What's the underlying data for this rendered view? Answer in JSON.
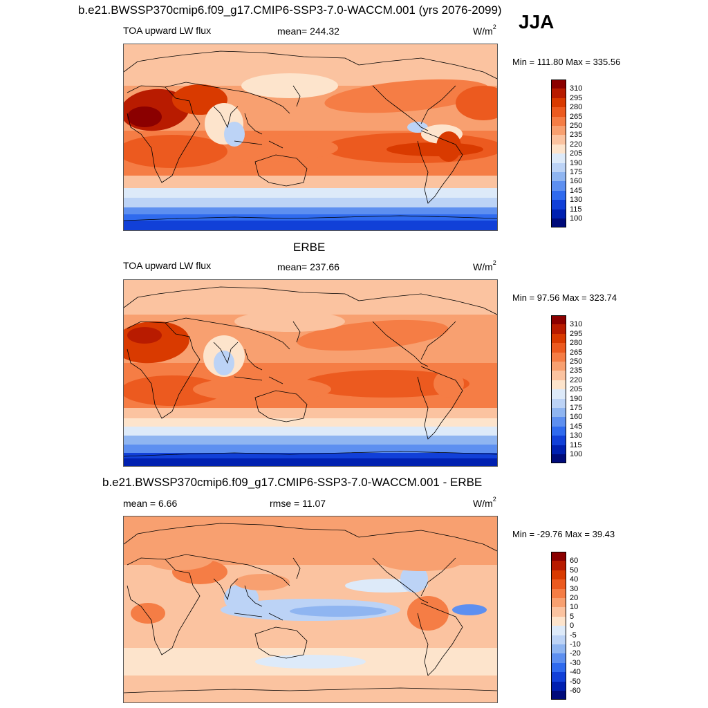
{
  "header": {
    "title": "b.e21.BWSSP370cmip6.f09_g17.CMIP6-SSP3-7.0-WACCM.001 (yrs 2076-2099)",
    "season": "JJA"
  },
  "panels": [
    {
      "id": "model",
      "heading": "",
      "left_label": "TOA upward LW flux",
      "center_label": "mean= 244.32",
      "units": "W/m",
      "units_sup": "2",
      "minmax": "Min = 111.80 Max = 335.56",
      "legend_levels": [
        "310",
        "295",
        "280",
        "265",
        "250",
        "235",
        "220",
        "205",
        "190",
        "175",
        "160",
        "145",
        "130",
        "115",
        "100"
      ],
      "legend_colors": [
        "#8b0000",
        "#b81b00",
        "#d93a00",
        "#ec5a1f",
        "#f57d45",
        "#f8a070",
        "#fbc3a0",
        "#fde4cc",
        "#ddeaf9",
        "#bcd3f6",
        "#8fb5f1",
        "#5d8ff0",
        "#2f6aee",
        "#1140d8",
        "#0020b0",
        "#000b7a"
      ],
      "pattern": "model"
    },
    {
      "id": "obs",
      "heading": "ERBE",
      "left_label": "TOA upward LW flux",
      "center_label": "mean= 237.66",
      "units": "W/m",
      "units_sup": "2",
      "minmax": "Min =  97.56 Max = 323.74",
      "legend_levels": [
        "310",
        "295",
        "280",
        "265",
        "250",
        "235",
        "220",
        "205",
        "190",
        "175",
        "160",
        "145",
        "130",
        "115",
        "100"
      ],
      "legend_colors": [
        "#8b0000",
        "#b81b00",
        "#d93a00",
        "#ec5a1f",
        "#f57d45",
        "#f8a070",
        "#fbc3a0",
        "#fde4cc",
        "#ddeaf9",
        "#bcd3f6",
        "#8fb5f1",
        "#5d8ff0",
        "#2f6aee",
        "#1140d8",
        "#0020b0",
        "#000b7a"
      ],
      "pattern": "obs"
    },
    {
      "id": "diff",
      "heading": "b.e21.BWSSP370cmip6.f09_g17.CMIP6-SSP3-7.0-WACCM.001 - ERBE",
      "left_label": "mean =   6.66",
      "center_label": "rmse =  11.07",
      "units": "W/m",
      "units_sup": "2",
      "minmax": "Min = -29.76 Max =  39.43",
      "legend_levels": [
        "60",
        "50",
        "40",
        "30",
        "20",
        "10",
        "5",
        "0",
        "-5",
        "-10",
        "-20",
        "-30",
        "-40",
        "-50",
        "-60"
      ],
      "legend_colors": [
        "#8b0000",
        "#b81b00",
        "#d93a00",
        "#ec5a1f",
        "#f57d45",
        "#f8a070",
        "#fbc3a0",
        "#fde4cc",
        "#ddeaf9",
        "#bcd3f6",
        "#8fb5f1",
        "#5d8ff0",
        "#2f6aee",
        "#1140d8",
        "#0020b0",
        "#000b7a"
      ],
      "pattern": "diff"
    }
  ]
}
